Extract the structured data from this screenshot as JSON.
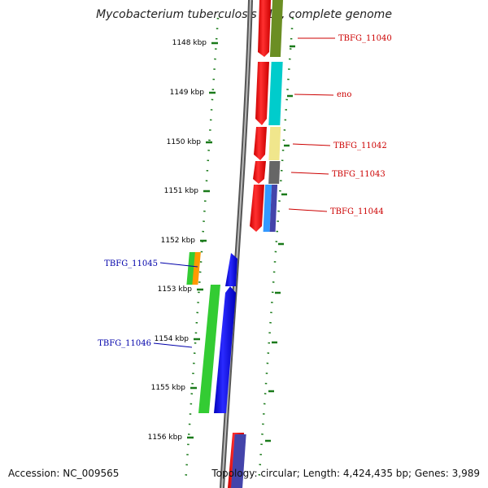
{
  "title": "Mycobacterium tuberculosis F11, complete genome",
  "footer": {
    "accession": "Accession: NC_009565",
    "info": "Topology: circular; Length: 4,424,435 bp; Genes: 3,989"
  },
  "colors": {
    "forward_label": "#cc0000",
    "reverse_label": "#0000aa",
    "tick": "#1a7a1a",
    "backbone": "#888888"
  },
  "ticks": [
    {
      "label": "1148 kbp"
    },
    {
      "label": "1149 kbp"
    },
    {
      "label": "1150 kbp"
    },
    {
      "label": "1151 kbp"
    },
    {
      "label": "1152 kbp"
    },
    {
      "label": "1153 kbp"
    },
    {
      "label": "1154 kbp"
    },
    {
      "label": "1155 kbp"
    },
    {
      "label": "1156 kbp"
    }
  ],
  "gene_labels": [
    {
      "name": "TBFG_11040",
      "strand": "forward"
    },
    {
      "name": "eno",
      "strand": "forward"
    },
    {
      "name": "TBFG_11042",
      "strand": "forward"
    },
    {
      "name": "TBFG_11043",
      "strand": "forward"
    },
    {
      "name": "TBFG_11044",
      "strand": "forward"
    },
    {
      "name": "TBFG_11045",
      "strand": "reverse"
    },
    {
      "name": "TBFG_11046",
      "strand": "reverse"
    }
  ],
  "cog_colors": [
    "#6b8e23",
    "#00cccc",
    "#f0e68c",
    "#666666",
    "#3399ff",
    "#4444aa",
    "#ff9900",
    "#33cc33"
  ]
}
